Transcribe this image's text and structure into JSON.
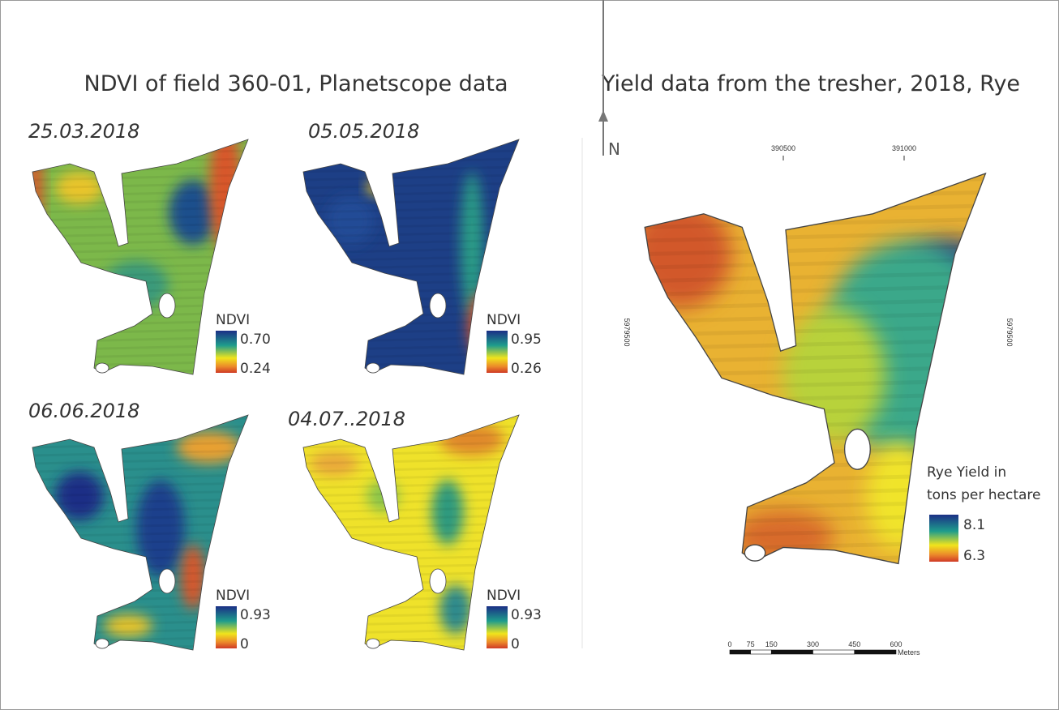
{
  "left_panel": {
    "title": "NDVI of field 360-01, Planetscope data",
    "maps": [
      {
        "date": "25.03.2018",
        "legend_title": "NDVI",
        "max": "0.70",
        "min": "0.24"
      },
      {
        "date": "05.05.2018",
        "legend_title": "NDVI",
        "max": "0.95",
        "min": "0.26"
      },
      {
        "date": "06.06.2018",
        "legend_title": "NDVI",
        "max": "0.93",
        "min": "0"
      },
      {
        "date": "04.07..2018",
        "legend_title": "NDVI",
        "max": "0.93",
        "min": "0"
      }
    ]
  },
  "right_panel": {
    "title": "Yield data from the tresher, 2018, Rye",
    "north": "N",
    "x_coords": [
      "390500",
      "391000"
    ],
    "y_coords": [
      "5979500",
      "5979500"
    ],
    "legend_title": [
      "Rye Yield in",
      "tons per hectare"
    ],
    "max": "8.1",
    "min": "6.3",
    "scale_labels": [
      "0",
      "75",
      "150",
      "300",
      "450",
      "600"
    ],
    "scale_unit": "Meters"
  }
}
